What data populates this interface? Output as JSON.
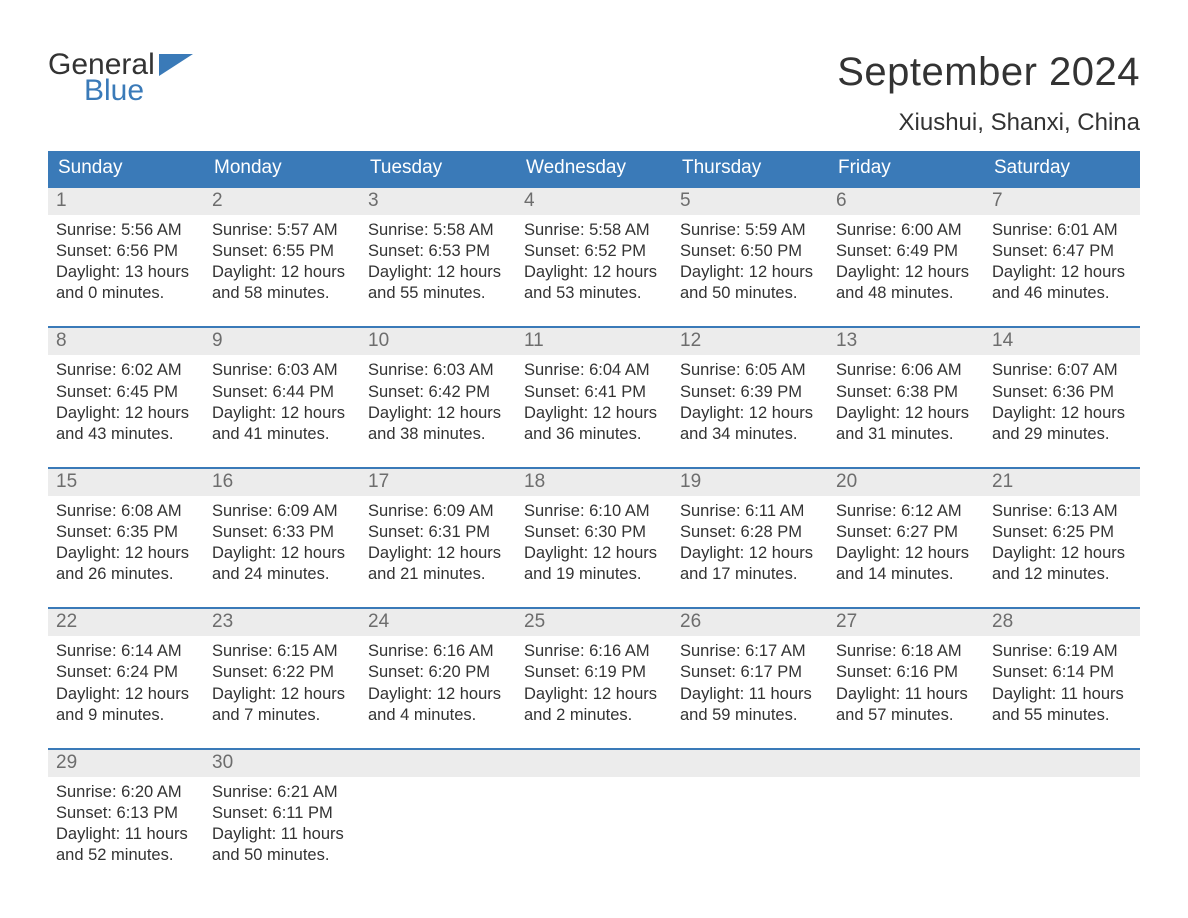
{
  "logo": {
    "word1": "General",
    "word2": "Blue",
    "flag_color": "#3a7ab8"
  },
  "title": "September 2024",
  "location": "Xiushui, Shanxi, China",
  "colors": {
    "header_bg": "#3a7ab8",
    "daynum_bg": "#ececec",
    "text": "#333333",
    "muted": "#6d6d6d",
    "white": "#ffffff"
  },
  "weekdays": [
    "Sunday",
    "Monday",
    "Tuesday",
    "Wednesday",
    "Thursday",
    "Friday",
    "Saturday"
  ],
  "labels": {
    "sunrise": "Sunrise:",
    "sunset": "Sunset:",
    "daylight": "Daylight:"
  },
  "weeks": [
    [
      {
        "n": "1",
        "sunrise": "5:56 AM",
        "sunset": "6:56 PM",
        "dl1": "13 hours",
        "dl2": "and 0 minutes."
      },
      {
        "n": "2",
        "sunrise": "5:57 AM",
        "sunset": "6:55 PM",
        "dl1": "12 hours",
        "dl2": "and 58 minutes."
      },
      {
        "n": "3",
        "sunrise": "5:58 AM",
        "sunset": "6:53 PM",
        "dl1": "12 hours",
        "dl2": "and 55 minutes."
      },
      {
        "n": "4",
        "sunrise": "5:58 AM",
        "sunset": "6:52 PM",
        "dl1": "12 hours",
        "dl2": "and 53 minutes."
      },
      {
        "n": "5",
        "sunrise": "5:59 AM",
        "sunset": "6:50 PM",
        "dl1": "12 hours",
        "dl2": "and 50 minutes."
      },
      {
        "n": "6",
        "sunrise": "6:00 AM",
        "sunset": "6:49 PM",
        "dl1": "12 hours",
        "dl2": "and 48 minutes."
      },
      {
        "n": "7",
        "sunrise": "6:01 AM",
        "sunset": "6:47 PM",
        "dl1": "12 hours",
        "dl2": "and 46 minutes."
      }
    ],
    [
      {
        "n": "8",
        "sunrise": "6:02 AM",
        "sunset": "6:45 PM",
        "dl1": "12 hours",
        "dl2": "and 43 minutes."
      },
      {
        "n": "9",
        "sunrise": "6:03 AM",
        "sunset": "6:44 PM",
        "dl1": "12 hours",
        "dl2": "and 41 minutes."
      },
      {
        "n": "10",
        "sunrise": "6:03 AM",
        "sunset": "6:42 PM",
        "dl1": "12 hours",
        "dl2": "and 38 minutes."
      },
      {
        "n": "11",
        "sunrise": "6:04 AM",
        "sunset": "6:41 PM",
        "dl1": "12 hours",
        "dl2": "and 36 minutes."
      },
      {
        "n": "12",
        "sunrise": "6:05 AM",
        "sunset": "6:39 PM",
        "dl1": "12 hours",
        "dl2": "and 34 minutes."
      },
      {
        "n": "13",
        "sunrise": "6:06 AM",
        "sunset": "6:38 PM",
        "dl1": "12 hours",
        "dl2": "and 31 minutes."
      },
      {
        "n": "14",
        "sunrise": "6:07 AM",
        "sunset": "6:36 PM",
        "dl1": "12 hours",
        "dl2": "and 29 minutes."
      }
    ],
    [
      {
        "n": "15",
        "sunrise": "6:08 AM",
        "sunset": "6:35 PM",
        "dl1": "12 hours",
        "dl2": "and 26 minutes."
      },
      {
        "n": "16",
        "sunrise": "6:09 AM",
        "sunset": "6:33 PM",
        "dl1": "12 hours",
        "dl2": "and 24 minutes."
      },
      {
        "n": "17",
        "sunrise": "6:09 AM",
        "sunset": "6:31 PM",
        "dl1": "12 hours",
        "dl2": "and 21 minutes."
      },
      {
        "n": "18",
        "sunrise": "6:10 AM",
        "sunset": "6:30 PM",
        "dl1": "12 hours",
        "dl2": "and 19 minutes."
      },
      {
        "n": "19",
        "sunrise": "6:11 AM",
        "sunset": "6:28 PM",
        "dl1": "12 hours",
        "dl2": "and 17 minutes."
      },
      {
        "n": "20",
        "sunrise": "6:12 AM",
        "sunset": "6:27 PM",
        "dl1": "12 hours",
        "dl2": "and 14 minutes."
      },
      {
        "n": "21",
        "sunrise": "6:13 AM",
        "sunset": "6:25 PM",
        "dl1": "12 hours",
        "dl2": "and 12 minutes."
      }
    ],
    [
      {
        "n": "22",
        "sunrise": "6:14 AM",
        "sunset": "6:24 PM",
        "dl1": "12 hours",
        "dl2": "and 9 minutes."
      },
      {
        "n": "23",
        "sunrise": "6:15 AM",
        "sunset": "6:22 PM",
        "dl1": "12 hours",
        "dl2": "and 7 minutes."
      },
      {
        "n": "24",
        "sunrise": "6:16 AM",
        "sunset": "6:20 PM",
        "dl1": "12 hours",
        "dl2": "and 4 minutes."
      },
      {
        "n": "25",
        "sunrise": "6:16 AM",
        "sunset": "6:19 PM",
        "dl1": "12 hours",
        "dl2": "and 2 minutes."
      },
      {
        "n": "26",
        "sunrise": "6:17 AM",
        "sunset": "6:17 PM",
        "dl1": "11 hours",
        "dl2": "and 59 minutes."
      },
      {
        "n": "27",
        "sunrise": "6:18 AM",
        "sunset": "6:16 PM",
        "dl1": "11 hours",
        "dl2": "and 57 minutes."
      },
      {
        "n": "28",
        "sunrise": "6:19 AM",
        "sunset": "6:14 PM",
        "dl1": "11 hours",
        "dl2": "and 55 minutes."
      }
    ],
    [
      {
        "n": "29",
        "sunrise": "6:20 AM",
        "sunset": "6:13 PM",
        "dl1": "11 hours",
        "dl2": "and 52 minutes."
      },
      {
        "n": "30",
        "sunrise": "6:21 AM",
        "sunset": "6:11 PM",
        "dl1": "11 hours",
        "dl2": "and 50 minutes."
      },
      null,
      null,
      null,
      null,
      null
    ]
  ]
}
